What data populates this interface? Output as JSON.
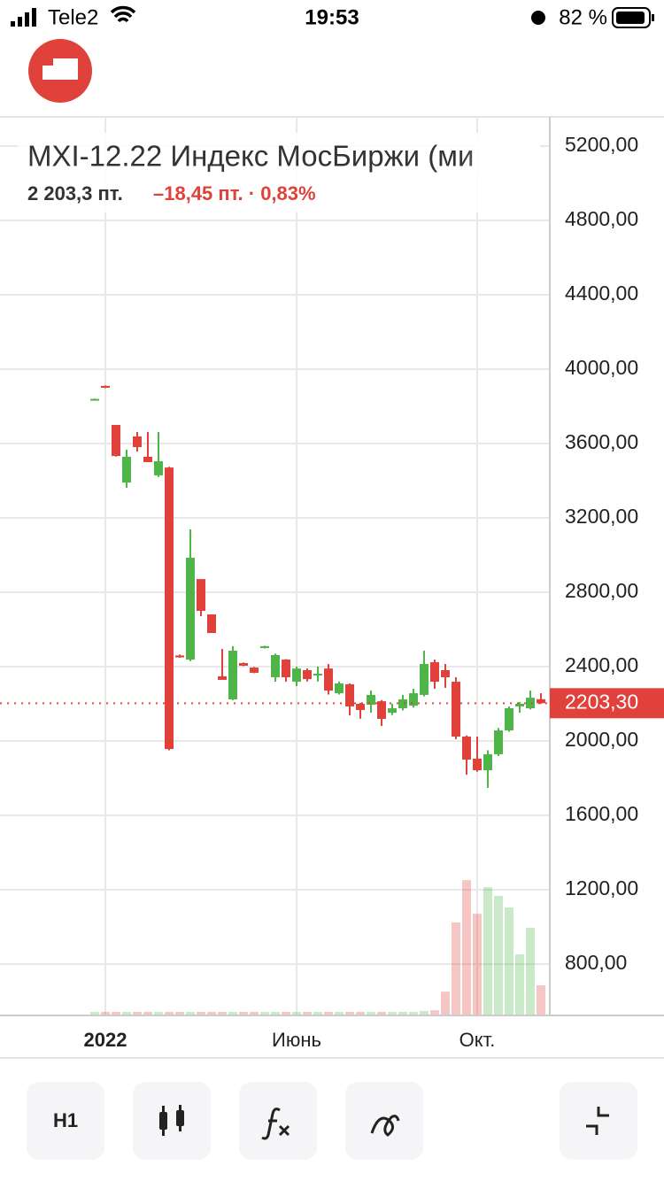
{
  "status_bar": {
    "carrier": "Tele2",
    "time": "19:53",
    "battery": "82 %"
  },
  "header": {
    "title": "MXI-12.22 Индекс МосБиржи (ми",
    "price": "2 203,3 пт.",
    "change": "–18,45 пт. · 0,83%"
  },
  "chart_data": {
    "type": "candlestick",
    "categories": [
      null,
      "2022",
      null,
      null,
      null,
      null,
      null,
      null,
      null,
      null,
      null,
      null,
      null,
      null,
      null,
      null,
      null,
      null,
      null,
      "Июнь",
      null,
      null,
      null,
      null,
      null,
      null,
      null,
      null,
      null,
      null,
      null,
      null,
      null,
      null,
      null,
      null,
      "Окт.",
      null,
      null,
      null,
      null,
      null,
      null
    ],
    "open": [
      3835,
      3910,
      3700,
      3390,
      3638,
      3529,
      3429,
      3471,
      2460,
      2438,
      2871,
      2681,
      2348,
      2224,
      2419,
      2395,
      2500,
      2343,
      2438,
      2319,
      2381,
      2355,
      2390,
      2257,
      2305,
      2200,
      2195,
      2214,
      2152,
      2176,
      2190,
      2248,
      2424,
      2381,
      2319,
      2024,
      1905,
      1843,
      1929,
      2057,
      2186,
      2176,
      2225
    ],
    "high": [
      3842,
      3912,
      3700,
      3567,
      3662,
      3662,
      3662,
      3475,
      2465,
      3138,
      2871,
      2681,
      2495,
      2510,
      2422,
      2398,
      2512,
      2470,
      2440,
      2400,
      2390,
      2400,
      2414,
      2320,
      2310,
      2205,
      2271,
      2220,
      2200,
      2248,
      2281,
      2486,
      2438,
      2414,
      2343,
      2030,
      2024,
      1950,
      2070,
      2186,
      2210,
      2271,
      2257
    ],
    "low": [
      3832,
      3898,
      3530,
      3362,
      3557,
      3500,
      3420,
      1950,
      2448,
      2430,
      2671,
      2581,
      2329,
      2220,
      2403,
      2365,
      2498,
      2319,
      2319,
      2295,
      2320,
      2320,
      2250,
      2250,
      2138,
      2120,
      2152,
      2081,
      2140,
      2165,
      2180,
      2240,
      2281,
      2286,
      2010,
      1819,
      1835,
      1748,
      1919,
      2050,
      2152,
      2170,
      2200
    ],
    "close": [
      3840,
      3900,
      3533,
      3529,
      3581,
      3500,
      3505,
      1957,
      2450,
      2986,
      2700,
      2581,
      2329,
      2486,
      2405,
      2367,
      2510,
      2462,
      2343,
      2390,
      2333,
      2362,
      2271,
      2310,
      2186,
      2167,
      2248,
      2119,
      2176,
      2224,
      2257,
      2414,
      2319,
      2343,
      2024,
      1900,
      1843,
      1929,
      2057,
      2176,
      2200,
      2233,
      2203.3
    ],
    "volume": [
      543,
      543,
      543,
      543,
      543,
      543,
      543,
      543,
      543,
      543,
      543,
      543,
      543,
      543,
      543,
      543,
      543,
      543,
      543,
      543,
      543,
      543,
      543,
      543,
      543,
      543,
      543,
      543,
      543,
      543,
      543,
      548,
      552,
      652,
      1024,
      1252,
      1071,
      1214,
      1167,
      1105,
      852,
      995,
      686
    ],
    "up_color": "#4fb548",
    "down_color": "#e0413a",
    "ylim": [
      524,
      5357
    ],
    "yticks": [
      {
        "value": 800,
        "label": "800,00"
      },
      {
        "value": 1200,
        "label": "1200,00"
      },
      {
        "value": 1600,
        "label": "1600,00"
      },
      {
        "value": 2000,
        "label": "2000,00"
      },
      {
        "value": 2400,
        "label": "2400,00"
      },
      {
        "value": 2800,
        "label": "2800,00"
      },
      {
        "value": 3200,
        "label": "3200,00"
      },
      {
        "value": 3600,
        "label": "3600,00"
      },
      {
        "value": 4000,
        "label": "4000,00"
      },
      {
        "value": 4400,
        "label": "4400,00"
      },
      {
        "value": 4800,
        "label": "4800,00"
      },
      {
        "value": 5200,
        "label": "5200,00"
      }
    ],
    "last_price": {
      "value": 2203.3,
      "label": "2203,30"
    },
    "grid": true
  },
  "toolbar": {
    "interval": "H1"
  }
}
